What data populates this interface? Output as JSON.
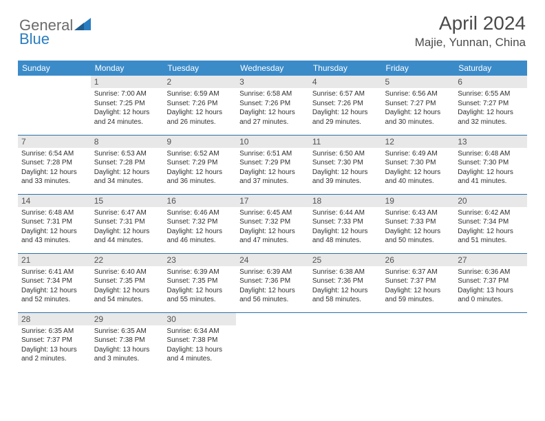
{
  "colors": {
    "header_bg": "#3b8bc9",
    "header_text": "#ffffff",
    "daynum_bg": "#e8e8e8",
    "daynum_text": "#525252",
    "body_text": "#2e2e2e",
    "rule": "#2a6fa8",
    "logo_gray": "#6b6b6b",
    "logo_blue": "#2a7dc0",
    "title_color": "#4a4a4a"
  },
  "logo": {
    "part1": "General",
    "part2": "Blue"
  },
  "title": "April 2024",
  "location": "Majie, Yunnan, China",
  "weekdays": [
    "Sunday",
    "Monday",
    "Tuesday",
    "Wednesday",
    "Thursday",
    "Friday",
    "Saturday"
  ],
  "grid": [
    [
      {
        "blank": true
      },
      {
        "n": "1",
        "sr": "7:00 AM",
        "ss": "7:25 PM",
        "dl": "12 hours and 24 minutes."
      },
      {
        "n": "2",
        "sr": "6:59 AM",
        "ss": "7:26 PM",
        "dl": "12 hours and 26 minutes."
      },
      {
        "n": "3",
        "sr": "6:58 AM",
        "ss": "7:26 PM",
        "dl": "12 hours and 27 minutes."
      },
      {
        "n": "4",
        "sr": "6:57 AM",
        "ss": "7:26 PM",
        "dl": "12 hours and 29 minutes."
      },
      {
        "n": "5",
        "sr": "6:56 AM",
        "ss": "7:27 PM",
        "dl": "12 hours and 30 minutes."
      },
      {
        "n": "6",
        "sr": "6:55 AM",
        "ss": "7:27 PM",
        "dl": "12 hours and 32 minutes."
      }
    ],
    [
      {
        "n": "7",
        "sr": "6:54 AM",
        "ss": "7:28 PM",
        "dl": "12 hours and 33 minutes."
      },
      {
        "n": "8",
        "sr": "6:53 AM",
        "ss": "7:28 PM",
        "dl": "12 hours and 34 minutes."
      },
      {
        "n": "9",
        "sr": "6:52 AM",
        "ss": "7:29 PM",
        "dl": "12 hours and 36 minutes."
      },
      {
        "n": "10",
        "sr": "6:51 AM",
        "ss": "7:29 PM",
        "dl": "12 hours and 37 minutes."
      },
      {
        "n": "11",
        "sr": "6:50 AM",
        "ss": "7:30 PM",
        "dl": "12 hours and 39 minutes."
      },
      {
        "n": "12",
        "sr": "6:49 AM",
        "ss": "7:30 PM",
        "dl": "12 hours and 40 minutes."
      },
      {
        "n": "13",
        "sr": "6:48 AM",
        "ss": "7:30 PM",
        "dl": "12 hours and 41 minutes."
      }
    ],
    [
      {
        "n": "14",
        "sr": "6:48 AM",
        "ss": "7:31 PM",
        "dl": "12 hours and 43 minutes."
      },
      {
        "n": "15",
        "sr": "6:47 AM",
        "ss": "7:31 PM",
        "dl": "12 hours and 44 minutes."
      },
      {
        "n": "16",
        "sr": "6:46 AM",
        "ss": "7:32 PM",
        "dl": "12 hours and 46 minutes."
      },
      {
        "n": "17",
        "sr": "6:45 AM",
        "ss": "7:32 PM",
        "dl": "12 hours and 47 minutes."
      },
      {
        "n": "18",
        "sr": "6:44 AM",
        "ss": "7:33 PM",
        "dl": "12 hours and 48 minutes."
      },
      {
        "n": "19",
        "sr": "6:43 AM",
        "ss": "7:33 PM",
        "dl": "12 hours and 50 minutes."
      },
      {
        "n": "20",
        "sr": "6:42 AM",
        "ss": "7:34 PM",
        "dl": "12 hours and 51 minutes."
      }
    ],
    [
      {
        "n": "21",
        "sr": "6:41 AM",
        "ss": "7:34 PM",
        "dl": "12 hours and 52 minutes."
      },
      {
        "n": "22",
        "sr": "6:40 AM",
        "ss": "7:35 PM",
        "dl": "12 hours and 54 minutes."
      },
      {
        "n": "23",
        "sr": "6:39 AM",
        "ss": "7:35 PM",
        "dl": "12 hours and 55 minutes."
      },
      {
        "n": "24",
        "sr": "6:39 AM",
        "ss": "7:36 PM",
        "dl": "12 hours and 56 minutes."
      },
      {
        "n": "25",
        "sr": "6:38 AM",
        "ss": "7:36 PM",
        "dl": "12 hours and 58 minutes."
      },
      {
        "n": "26",
        "sr": "6:37 AM",
        "ss": "7:37 PM",
        "dl": "12 hours and 59 minutes."
      },
      {
        "n": "27",
        "sr": "6:36 AM",
        "ss": "7:37 PM",
        "dl": "13 hours and 0 minutes."
      }
    ],
    [
      {
        "n": "28",
        "sr": "6:35 AM",
        "ss": "7:37 PM",
        "dl": "13 hours and 2 minutes."
      },
      {
        "n": "29",
        "sr": "6:35 AM",
        "ss": "7:38 PM",
        "dl": "13 hours and 3 minutes."
      },
      {
        "n": "30",
        "sr": "6:34 AM",
        "ss": "7:38 PM",
        "dl": "13 hours and 4 minutes."
      },
      {
        "blank": true
      },
      {
        "blank": true
      },
      {
        "blank": true
      },
      {
        "blank": true
      }
    ]
  ],
  "labels": {
    "sunrise": "Sunrise:",
    "sunset": "Sunset:",
    "daylight": "Daylight:"
  }
}
